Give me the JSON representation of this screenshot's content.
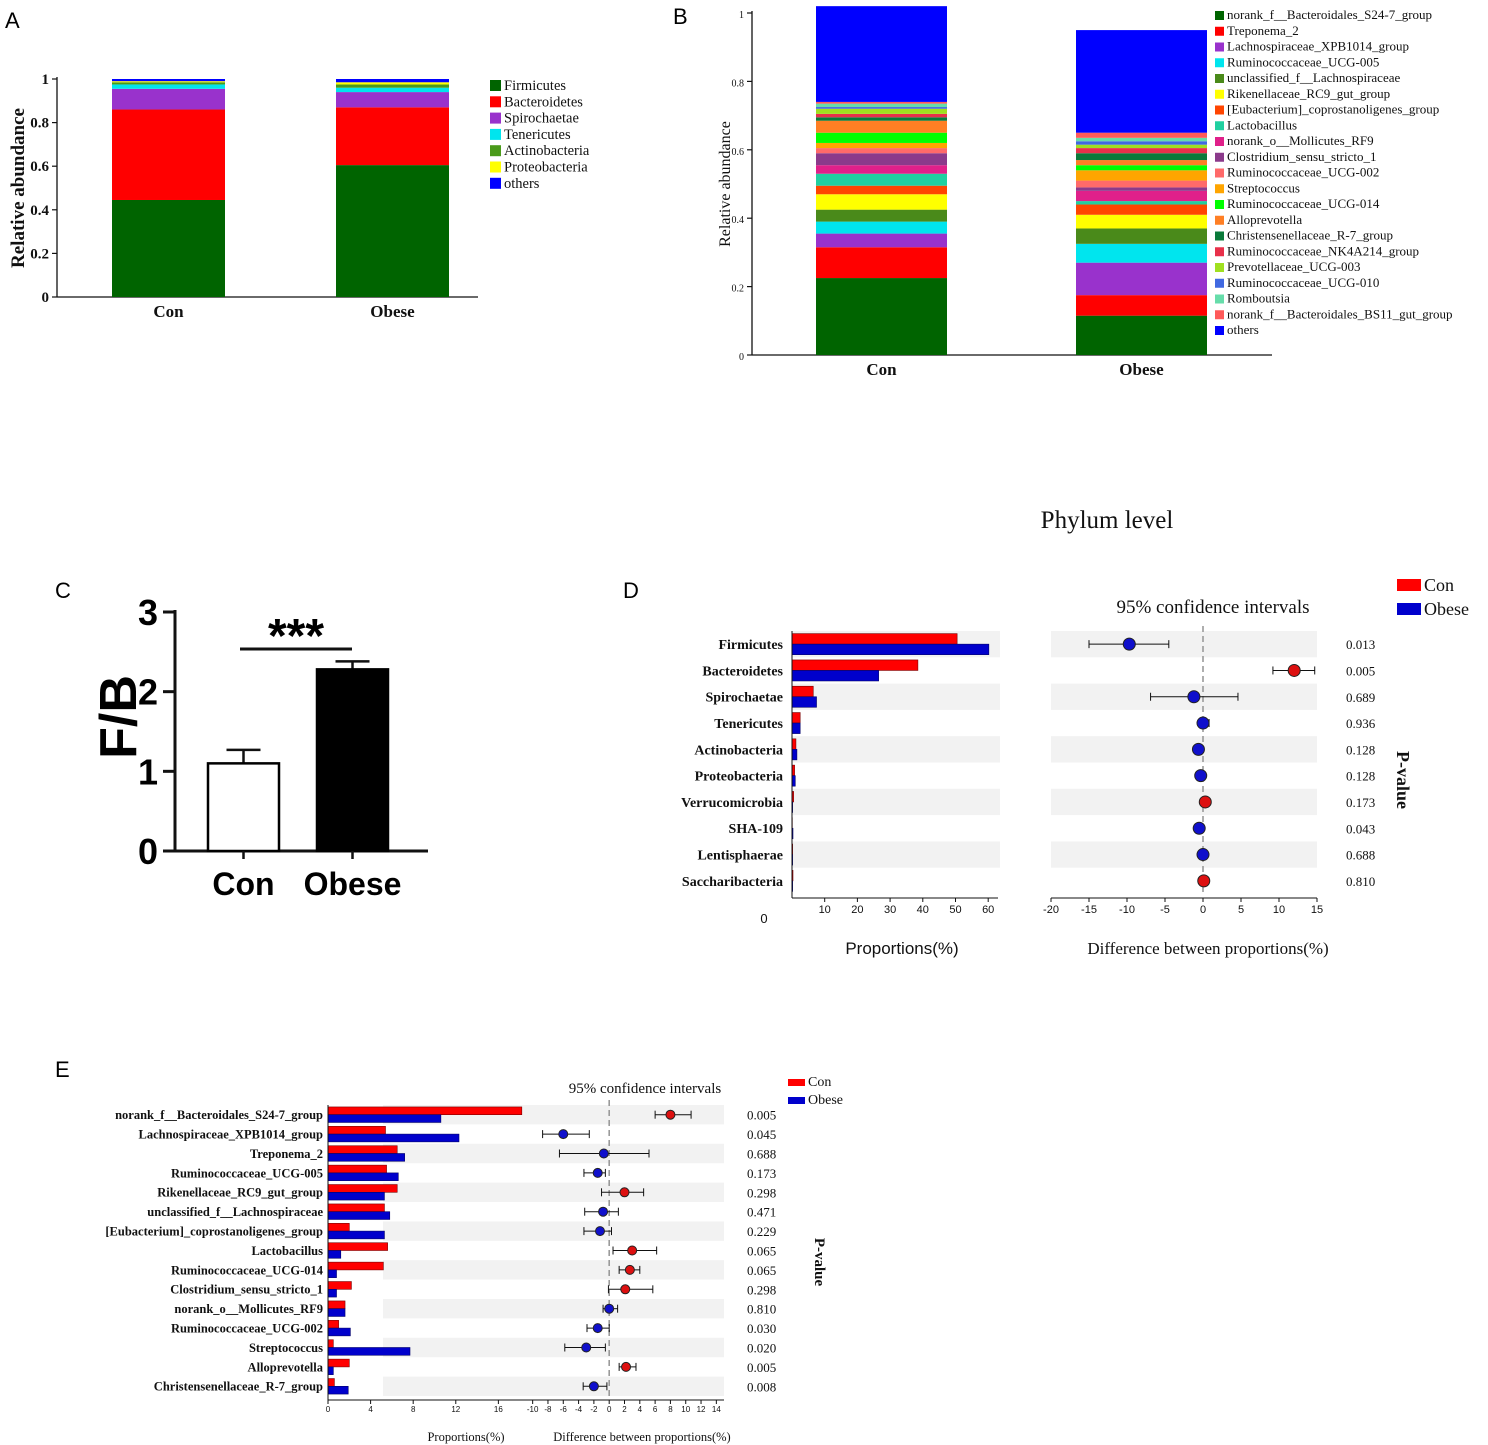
{
  "chart_data": [
    {
      "panel": "A",
      "type": "bar",
      "stacked": true,
      "ylabel": "Relative abundance",
      "ylim": [
        0,
        1
      ],
      "yticks": [
        "0",
        "0.2",
        "0.4",
        "0.6",
        "0.8",
        "1"
      ],
      "categories": [
        "Con",
        "Obese"
      ],
      "series": [
        {
          "name": "Firmicutes",
          "color": "#006400",
          "values": [
            0.445,
            0.605
          ]
        },
        {
          "name": "Bacteroidetes",
          "color": "#ff0000",
          "values": [
            0.415,
            0.265
          ]
        },
        {
          "name": "Spirochaetae",
          "color": "#9932cc",
          "values": [
            0.095,
            0.07
          ]
        },
        {
          "name": "Tenericutes",
          "color": "#00e5ee",
          "values": [
            0.02,
            0.02
          ]
        },
        {
          "name": "Actinobacteria",
          "color": "#4a9a1a",
          "values": [
            0.01,
            0.015
          ]
        },
        {
          "name": "Proteobacteria",
          "color": "#ffff00",
          "values": [
            0.005,
            0.01
          ]
        },
        {
          "name": "others",
          "color": "#0000ff",
          "values": [
            0.01,
            0.015
          ]
        }
      ]
    },
    {
      "panel": "B",
      "type": "bar",
      "stacked": true,
      "ylabel": "Relative abundance",
      "ylim": [
        0,
        1
      ],
      "yticks": [
        "0",
        "0.2",
        "0.4",
        "0.6",
        "0.8",
        "1"
      ],
      "categories": [
        "Con",
        "Obese"
      ],
      "series": [
        {
          "name": "norank_f__Bacteroidales_S24-7_group",
          "color": "#006400",
          "values": [
            0.225,
            0.115
          ]
        },
        {
          "name": "Treponema_2",
          "color": "#ff0000",
          "values": [
            0.09,
            0.06
          ]
        },
        {
          "name": "Lachnospiraceae_XPB1014_group",
          "color": "#9932cc",
          "values": [
            0.04,
            0.095
          ]
        },
        {
          "name": "Ruminococcaceae_UCG-005",
          "color": "#00e5ee",
          "values": [
            0.035,
            0.055
          ]
        },
        {
          "name": "unclassified_f__Lachnospiraceae",
          "color": "#4a8a1a",
          "values": [
            0.035,
            0.045
          ]
        },
        {
          "name": "Rikenellaceae_RC9_gut_group",
          "color": "#ffff00",
          "values": [
            0.045,
            0.04
          ]
        },
        {
          "name": "[Eubacterium]_coprostanoligenes_group",
          "color": "#ff4500",
          "values": [
            0.025,
            0.03
          ]
        },
        {
          "name": "Lactobacillus",
          "color": "#20d0a0",
          "values": [
            0.035,
            0.01
          ]
        },
        {
          "name": "norank_o__Mollicutes_RF9",
          "color": "#e0208a",
          "values": [
            0.025,
            0.03
          ]
        },
        {
          "name": "Clostridium_sensu_stricto_1",
          "color": "#8b3a8b",
          "values": [
            0.035,
            0.01
          ]
        },
        {
          "name": "Ruminococcaceae_UCG-002",
          "color": "#ff6a6a",
          "values": [
            0.015,
            0.02
          ]
        },
        {
          "name": "Streptococcus",
          "color": "#ffa500",
          "values": [
            0.015,
            0.03
          ]
        },
        {
          "name": "Ruminococcaceae_UCG-014",
          "color": "#00ff00",
          "values": [
            0.03,
            0.015
          ]
        },
        {
          "name": "Alloprevotella",
          "color": "#ff7f24",
          "values": [
            0.035,
            0.015
          ]
        },
        {
          "name": "Christensenellaceae_R-7_group",
          "color": "#0a7a3a",
          "values": [
            0.01,
            0.02
          ]
        },
        {
          "name": "Ruminococcaceae_NK4A214_group",
          "color": "#e8304a",
          "values": [
            0.01,
            0.015
          ]
        },
        {
          "name": "Prevotellaceae_UCG-003",
          "color": "#a0e020",
          "values": [
            0.015,
            0.01
          ]
        },
        {
          "name": "Ruminococcaceae_UCG-010",
          "color": "#4169e1",
          "values": [
            0.005,
            0.01
          ]
        },
        {
          "name": "Romboutsia",
          "color": "#66ddaa",
          "values": [
            0.01,
            0.01
          ]
        },
        {
          "name": "norank_f__Bacteroidales_BS11_gut_group",
          "color": "#ff5a5a",
          "values": [
            0.005,
            0.015
          ]
        },
        {
          "name": "others",
          "color": "#0000ff",
          "values": [
            0.28,
            0.3
          ]
        }
      ]
    },
    {
      "panel": "C",
      "type": "bar",
      "ylabel": "F/B",
      "ylim": [
        0,
        3
      ],
      "yticks": [
        "0",
        "1",
        "2",
        "3"
      ],
      "categories": [
        "Con",
        "Obese"
      ],
      "values": [
        1.1,
        2.28
      ],
      "errors": [
        0.17,
        0.1
      ],
      "colors": [
        "#ffffff",
        "#000000"
      ],
      "significance": "***"
    },
    {
      "panel": "D",
      "type": "bar",
      "title": "Phylum level",
      "ci_title": "95% confidence intervals",
      "xlabel_left": "Proportions(%)",
      "xlabel_right": "Difference between proportions(%)",
      "pvalue_label": "P-value",
      "left_zero_label": "0",
      "left_xlim": [
        0,
        63
      ],
      "left_ticks": [
        10,
        20,
        30,
        40,
        50,
        60
      ],
      "right_xlim": [
        -20,
        15
      ],
      "right_ticks": [
        -20,
        -15,
        -10,
        -5,
        0,
        5,
        10,
        15
      ],
      "legend": [
        {
          "name": "Con",
          "color": "#ff0000"
        },
        {
          "name": "Obese",
          "color": "#0000cc"
        }
      ],
      "categories": [
        "Firmicutes",
        "Bacteroidetes",
        "Spirochaetae",
        "Tenericutes",
        "Actinobacteria",
        "Proteobacteria",
        "Verrucomicrobia",
        "SHA-109",
        "Lentisphaerae",
        "Saccharibacteria"
      ],
      "con": [
        50.5,
        38.5,
        6.5,
        2.5,
        1.2,
        0.8,
        0.5,
        0.1,
        0.2,
        0.3
      ],
      "obese": [
        60.2,
        26.5,
        7.5,
        2.5,
        1.5,
        1.0,
        0.2,
        0.3,
        0.2,
        0.2
      ],
      "diff": [
        -9.7,
        12.0,
        -1.2,
        0.0,
        -0.6,
        -0.3,
        0.3,
        -0.5,
        0.0,
        0.1
      ],
      "ci_low": [
        -15.0,
        9.2,
        -6.9,
        -0.5,
        -0.8,
        -0.5,
        0.0,
        -0.7,
        -0.2,
        -0.1
      ],
      "ci_high": [
        -4.5,
        14.7,
        4.6,
        0.8,
        -0.4,
        -0.1,
        0.7,
        -0.3,
        0.2,
        0.3
      ],
      "group": [
        "Obese",
        "Con",
        "Obese",
        "Obese",
        "Obese",
        "Obese",
        "Con",
        "Obese",
        "Obese",
        "Con"
      ],
      "pvalues": [
        "0.013",
        "0.005",
        "0.689",
        "0.936",
        "0.128",
        "0.128",
        "0.173",
        "0.043",
        "0.688",
        "0.810"
      ]
    },
    {
      "panel": "E",
      "type": "bar",
      "ci_title": "95% confidence intervals",
      "xlabel_left": "Proportions(%)",
      "xlabel_right": "Difference between proportions(%)",
      "pvalue_label": "P-value",
      "left_xlim": [
        0,
        18.5
      ],
      "left_ticks": [
        0,
        4,
        8,
        12,
        16
      ],
      "right_xlim": [
        -11,
        15
      ],
      "right_ticks": [
        -10,
        -8,
        -6,
        -4,
        -2,
        0,
        2,
        4,
        6,
        8,
        10,
        12,
        14
      ],
      "legend": [
        {
          "name": "Con",
          "color": "#ff0000"
        },
        {
          "name": "Obese",
          "color": "#0000cc"
        }
      ],
      "categories": [
        "norank_f__Bacteroidales_S24-7_group",
        "Lachnospiraceae_XPB1014_group",
        "Treponema_2",
        "Ruminococcaceae_UCG-005",
        "Rikenellaceae_RC9_gut_group",
        "unclassified_f__Lachnospiraceae",
        "[Eubacterium]_coprostanoligenes_group",
        "Lactobacillus",
        "Ruminococcaceae_UCG-014",
        "Clostridium_sensu_stricto_1",
        "norank_o__Mollicutes_RF9",
        "Ruminococcaceae_UCG-002",
        "Streptococcus",
        "Alloprevotella",
        "Christensenellaceae_R-7_group"
      ],
      "con": [
        18.2,
        5.4,
        6.5,
        5.5,
        6.5,
        5.3,
        2.0,
        5.6,
        5.2,
        2.2,
        1.6,
        1.0,
        0.5,
        2.0,
        0.6
      ],
      "obese": [
        10.6,
        12.3,
        7.2,
        6.6,
        5.3,
        5.8,
        5.3,
        1.2,
        0.8,
        0.8,
        1.6,
        2.1,
        7.7,
        0.5,
        1.9
      ],
      "diff": [
        8.0,
        -6.0,
        -0.7,
        -1.5,
        2.0,
        -0.8,
        -1.2,
        3.0,
        2.7,
        2.1,
        0.0,
        -1.5,
        -3.0,
        2.2,
        -2.0
      ],
      "ci_low": [
        6.0,
        -8.7,
        -6.5,
        -3.3,
        -1.0,
        -3.2,
        -3.3,
        0.5,
        1.3,
        -0.1,
        -0.8,
        -2.9,
        -5.8,
        1.3,
        -3.4
      ],
      "ci_high": [
        10.7,
        -2.6,
        5.2,
        -0.5,
        4.5,
        1.2,
        0.3,
        6.2,
        4.0,
        5.7,
        1.1,
        0.0,
        -0.5,
        3.5,
        -0.3
      ],
      "group": [
        "Con",
        "Obese",
        "Obese",
        "Obese",
        "Con",
        "Obese",
        "Obese",
        "Con",
        "Con",
        "Con",
        "Obese",
        "Obese",
        "Obese",
        "Con",
        "Obese"
      ],
      "pvalues": [
        "0.005",
        "0.045",
        "0.688",
        "0.173",
        "0.298",
        "0.471",
        "0.229",
        "0.065",
        "0.065",
        "0.298",
        "0.810",
        "0.030",
        "0.020",
        "0.005",
        "0.008"
      ]
    }
  ]
}
